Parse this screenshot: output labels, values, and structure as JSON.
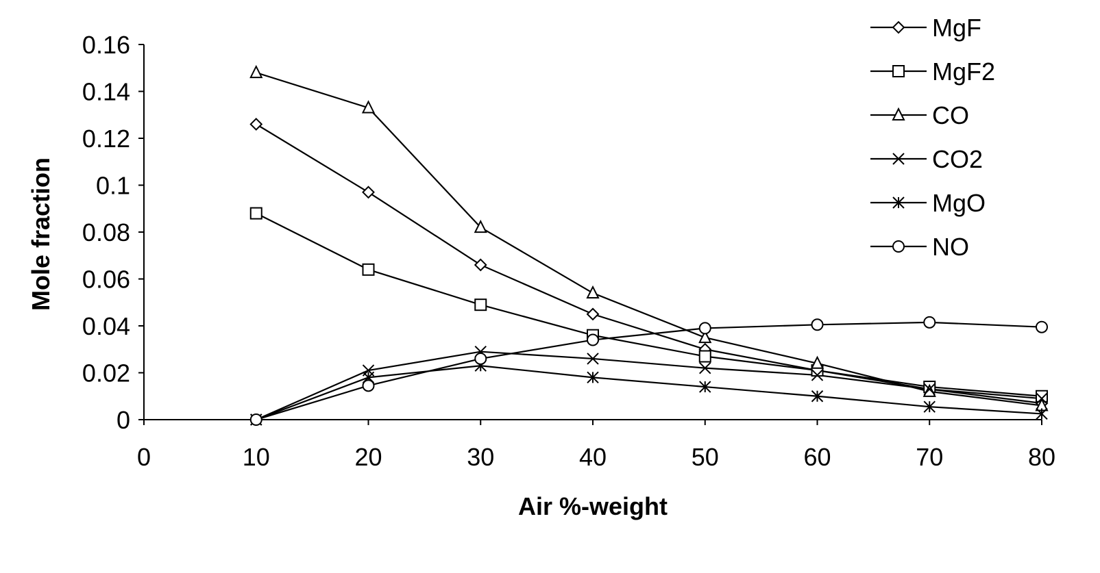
{
  "chart_data": {
    "type": "line",
    "title": "",
    "xlabel": "Air %-weight",
    "ylabel": "Mole fraction",
    "x": [
      10,
      20,
      30,
      40,
      50,
      60,
      70,
      80
    ],
    "xlim": [
      0,
      80
    ],
    "ylim": [
      0,
      0.16
    ],
    "xticks": [
      0,
      10,
      20,
      30,
      40,
      50,
      60,
      70,
      80
    ],
    "yticks": [
      0,
      0.02,
      0.04,
      0.06,
      0.08,
      0.1,
      0.12,
      0.14,
      0.16
    ],
    "xtick_labels": [
      "0",
      "10",
      "20",
      "30",
      "40",
      "50",
      "60",
      "70",
      "80"
    ],
    "ytick_labels": [
      "0",
      "0.02",
      "0.04",
      "0.06",
      "0.08",
      "0.1",
      "0.12",
      "0.14",
      "0.16"
    ],
    "grid": false,
    "legend": "top-right",
    "series": [
      {
        "name": "MgF",
        "marker": "diamond",
        "values": [
          0.126,
          0.097,
          0.066,
          0.045,
          0.03,
          0.021,
          0.013,
          0.007
        ]
      },
      {
        "name": "MgF2",
        "marker": "square",
        "values": [
          0.088,
          0.064,
          0.049,
          0.036,
          0.027,
          0.021,
          0.014,
          0.01
        ]
      },
      {
        "name": "CO",
        "marker": "triangle",
        "values": [
          0.148,
          0.133,
          0.082,
          0.054,
          0.035,
          0.024,
          0.012,
          0.006
        ]
      },
      {
        "name": "CO2",
        "marker": "x",
        "values": [
          0.0,
          0.021,
          0.029,
          0.026,
          0.022,
          0.019,
          0.013,
          0.009
        ]
      },
      {
        "name": "MgO",
        "marker": "asterisk",
        "values": [
          0.0,
          0.018,
          0.023,
          0.018,
          0.014,
          0.01,
          0.0055,
          0.0025
        ]
      },
      {
        "name": "NO",
        "marker": "circle",
        "values": [
          0.0,
          0.0145,
          0.026,
          0.034,
          0.039,
          0.0405,
          0.0415,
          0.0395
        ]
      }
    ]
  }
}
